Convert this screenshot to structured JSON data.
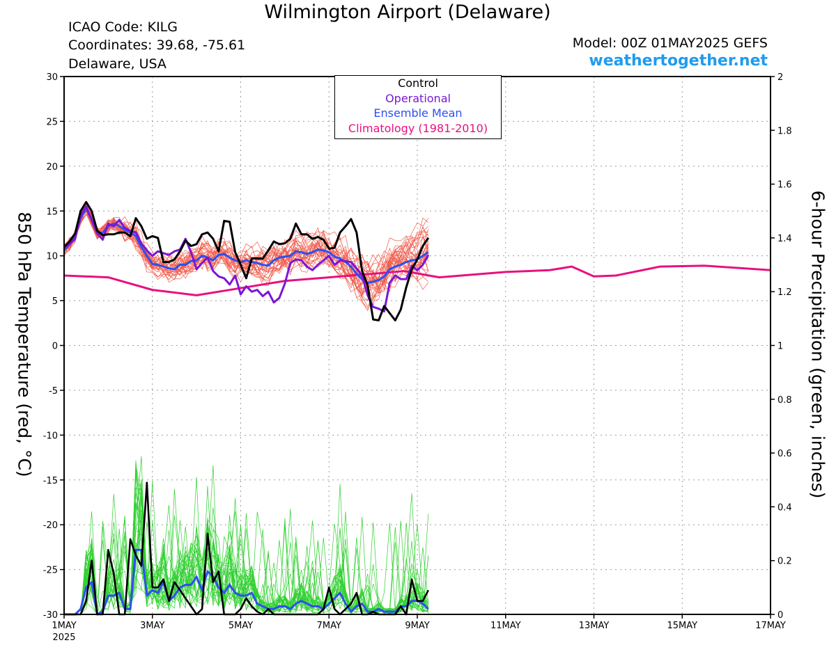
{
  "header": {
    "title": "Wilmington Airport (Delaware)",
    "icao": "ICAO Code: KILG",
    "coordinates": "Coordinates: 39.68, -75.61",
    "region": "Delaware, USA",
    "model": "Model: 00Z 01MAY2025 GEFS",
    "site": "weathertogether.net"
  },
  "legend": {
    "control": "Control",
    "operational": "Operational",
    "mean": "Ensemble Mean",
    "climatology": "Climatology (1981-2010)"
  },
  "colors": {
    "control": "#000000",
    "operational": "#7b16d6",
    "mean": "#2e4ff0",
    "climatology": "#e8107e",
    "members_temp": "#f05a4a",
    "members_precip": "#30d030",
    "site": "#1f9bef"
  },
  "chart_data": {
    "type": "line",
    "ylabel_left": "850 hPa Temperature (red, °C)",
    "ylabel_right": "6-hour Precipitation (green, inches)",
    "xlim": [
      0,
      16
    ],
    "ylim_left": [
      -30,
      30
    ],
    "ylim_right": [
      0,
      2
    ],
    "yticks_left": [
      -30,
      -25,
      -20,
      -15,
      -10,
      -5,
      0,
      5,
      10,
      15,
      20,
      25,
      30
    ],
    "yticks_right": [
      0,
      0.2,
      0.4,
      0.6,
      0.8,
      1,
      1.2,
      1.4,
      1.6,
      1.8,
      2
    ],
    "xticks": [
      {
        "x": 0,
        "label": "1MAY",
        "sub": "2025"
      },
      {
        "x": 2,
        "label": "3MAY"
      },
      {
        "x": 4,
        "label": "5MAY"
      },
      {
        "x": 6,
        "label": "7MAY"
      },
      {
        "x": 8,
        "label": "9MAY"
      },
      {
        "x": 10,
        "label": "11MAY"
      },
      {
        "x": 12,
        "label": "13MAY"
      },
      {
        "x": 14,
        "label": "15MAY"
      },
      {
        "x": 16,
        "label": "17MAY"
      }
    ],
    "grid": true,
    "x_step_days": 0.125,
    "series": [
      {
        "key": "control_temp",
        "axis": "left",
        "values": [
          11.0,
          11.6,
          12.5,
          15.0,
          16.0,
          15.0,
          12.8,
          12.3,
          12.4,
          12.4,
          12.6,
          12.6,
          12.2,
          14.2,
          13.3,
          11.9,
          12.2,
          12.0,
          9.3,
          9.3,
          9.6,
          10.5,
          11.7,
          11.1,
          11.3,
          12.4,
          12.6,
          11.9,
          10.5,
          13.9,
          13.8,
          10.4,
          9.0,
          7.5,
          9.7,
          9.7,
          9.7,
          10.6,
          11.6,
          11.3,
          11.4,
          11.9,
          13.6,
          12.4,
          12.4,
          11.9,
          12.1,
          11.8,
          10.8,
          10.9,
          12.6,
          13.3,
          14.1,
          12.6,
          8.3,
          6.7,
          2.9,
          2.8,
          4.4,
          3.6,
          2.8,
          4.0,
          6.5,
          8.5,
          9.6,
          11.1,
          12.0
        ]
      },
      {
        "key": "operational_temp",
        "axis": "left",
        "values": [
          10.8,
          11.3,
          11.9,
          14.5,
          15.5,
          14.0,
          12.5,
          11.8,
          13.6,
          13.3,
          14.0,
          13.1,
          12.8,
          12.6,
          11.4,
          10.6,
          10.0,
          10.5,
          10.3,
          10.1,
          10.5,
          10.7,
          11.9,
          10.4,
          8.5,
          9.2,
          9.8,
          8.3,
          7.7,
          7.5,
          6.8,
          7.8,
          5.7,
          6.6,
          6.0,
          6.2,
          5.5,
          6.0,
          4.8,
          5.3,
          6.9,
          9.2,
          9.6,
          9.5,
          8.8,
          8.4,
          9.0,
          9.5,
          10.0,
          9.0,
          9.5,
          9.4,
          9.3,
          8.6,
          7.8,
          5.6,
          4.3,
          4.1,
          3.8,
          7.0,
          7.8,
          7.4,
          7.4,
          8.9,
          8.4,
          9.0,
          10.1
        ]
      },
      {
        "key": "mean_temp",
        "axis": "left",
        "values": [
          10.6,
          11.3,
          12.2,
          14.2,
          15.3,
          14.0,
          12.5,
          12.6,
          13.3,
          13.6,
          13.3,
          12.9,
          12.6,
          12.2,
          11.0,
          10.0,
          9.1,
          9.0,
          8.8,
          8.6,
          8.5,
          9.0,
          9.0,
          9.4,
          9.5,
          10.0,
          9.8,
          9.5,
          10.1,
          10.2,
          9.8,
          9.5,
          9.3,
          9.5,
          9.3,
          9.2,
          9.0,
          8.9,
          9.5,
          9.8,
          9.9,
          10.0,
          10.5,
          10.4,
          10.2,
          10.4,
          10.7,
          10.6,
          10.4,
          9.9,
          9.7,
          9.3,
          8.8,
          8.0,
          7.4,
          7.0,
          7.1,
          7.3,
          7.7,
          8.5,
          8.8,
          9.0,
          9.3,
          9.5,
          9.6,
          10.0,
          10.4
        ]
      },
      {
        "key": "climatology_temp",
        "axis": "left",
        "values": [
          7.8,
          7.6,
          6.2,
          5.6,
          6.4,
          7.2,
          7.6,
          8.0,
          8.3,
          7.6,
          7.8,
          8.2,
          8.4,
          8.8,
          7.7,
          7.8,
          8.8,
          8.9,
          8.4
        ],
        "x": [
          0,
          1,
          2,
          3,
          4,
          5,
          6,
          7,
          7.7,
          8.5,
          9,
          10,
          11,
          11.5,
          12,
          12.5,
          13.5,
          14.5,
          16
        ]
      },
      {
        "key": "control_precip",
        "axis": "right",
        "values": [
          0,
          0,
          0,
          0,
          0.05,
          0.2,
          0,
          0,
          0.24,
          0.15,
          0,
          0,
          0.28,
          0.22,
          0.18,
          0.49,
          0.1,
          0.1,
          0.13,
          0.05,
          0.12,
          0.09,
          0.06,
          0.03,
          0,
          0.02,
          0.3,
          0.12,
          0.16,
          0,
          0,
          0,
          0.02,
          0.06,
          0.03,
          0.01,
          0,
          0.02,
          0,
          0,
          0,
          0,
          0,
          0,
          0,
          0,
          0,
          0.02,
          0.1,
          0.02,
          0,
          0.02,
          0.04,
          0.08,
          0,
          0,
          0.01,
          0,
          0,
          0,
          0,
          0.03,
          0,
          0.13,
          0.05,
          0.05,
          0.09
        ]
      },
      {
        "key": "mean_precip",
        "axis": "right",
        "values": [
          0,
          0,
          0,
          0.02,
          0.1,
          0.12,
          0,
          0.01,
          0.07,
          0.07,
          0.08,
          0.02,
          0.02,
          0.24,
          0.24,
          0.07,
          0.09,
          0.08,
          0.12,
          0.05,
          0.07,
          0.1,
          0.11,
          0.11,
          0.14,
          0.09,
          0.16,
          0.14,
          0.1,
          0.08,
          0.11,
          0.08,
          0.07,
          0.07,
          0.08,
          0.04,
          0.03,
          0.02,
          0.02,
          0.03,
          0.03,
          0.02,
          0.04,
          0.05,
          0.04,
          0.03,
          0.03,
          0.02,
          0.04,
          0.06,
          0.08,
          0.04,
          0.01,
          0.03,
          0.04,
          0.01,
          0.01,
          0.02,
          0.01,
          0.01,
          0.01,
          0.03,
          0.03,
          0.05,
          0.05,
          0.04,
          0.02
        ]
      }
    ]
  }
}
